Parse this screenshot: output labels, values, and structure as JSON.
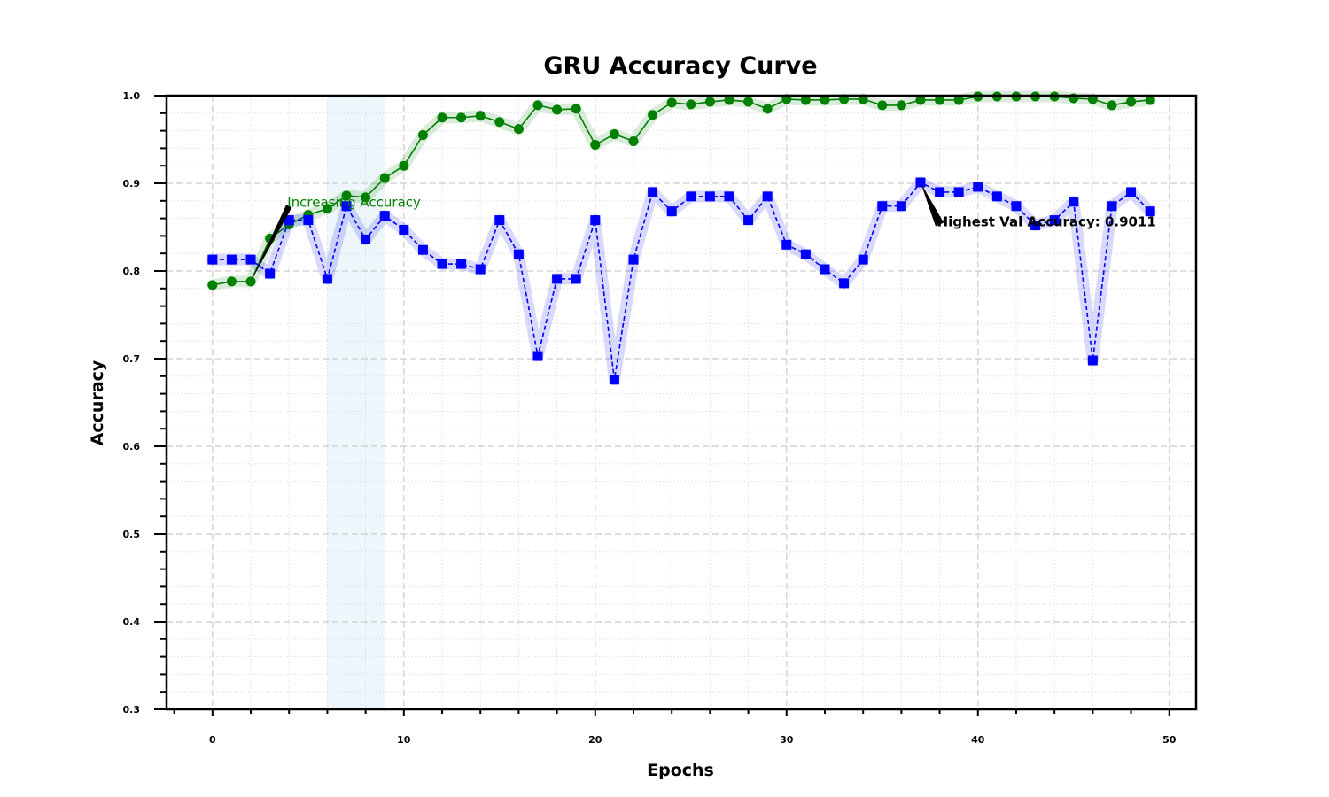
{
  "chart_data": {
    "type": "line",
    "title": "GRU Accuracy Curve",
    "xlabel": "Epochs",
    "ylabel": "Accuracy",
    "xlim": [
      -2.4,
      51.4
    ],
    "ylim": [
      0.3,
      1.0
    ],
    "x_ticks": [
      "0",
      "10",
      "20",
      "30",
      "40",
      "50"
    ],
    "y_ticks": [
      "0.3",
      "0.4",
      "0.5",
      "0.6",
      "0.7",
      "0.8",
      "0.9",
      "1.0"
    ],
    "grid": true,
    "legend": "none",
    "highlight_span": [
      6,
      9
    ],
    "colors": {
      "train": "#008000",
      "val": "#0000ff",
      "span": "#add8e6"
    },
    "series": [
      {
        "key": "train",
        "marker": "circle",
        "linestyle": "solid",
        "x": [
          0,
          1,
          2,
          3,
          4,
          5,
          6,
          7,
          8,
          9,
          10,
          11,
          12,
          13,
          14,
          15,
          16,
          17,
          18,
          19,
          20,
          21,
          22,
          23,
          24,
          25,
          26,
          27,
          28,
          29,
          30,
          31,
          32,
          33,
          34,
          35,
          36,
          37,
          38,
          39,
          40,
          41,
          42,
          43,
          44,
          45,
          46,
          47,
          48,
          49
        ],
        "values": [
          0.784,
          0.788,
          0.788,
          0.837,
          0.853,
          0.864,
          0.871,
          0.886,
          0.884,
          0.906,
          0.92,
          0.955,
          0.975,
          0.975,
          0.977,
          0.97,
          0.962,
          0.989,
          0.984,
          0.985,
          0.944,
          0.956,
          0.948,
          0.978,
          0.992,
          0.99,
          0.993,
          0.995,
          0.993,
          0.985,
          0.996,
          0.995,
          0.995,
          0.996,
          0.996,
          0.989,
          0.989,
          0.995,
          0.995,
          0.995,
          0.999,
          0.999,
          0.999,
          0.999,
          0.999,
          0.997,
          0.996,
          0.989,
          0.993,
          0.995
        ]
      },
      {
        "key": "val",
        "marker": "square",
        "linestyle": "dashed",
        "x": [
          0,
          1,
          2,
          3,
          4,
          5,
          6,
          7,
          8,
          9,
          10,
          11,
          12,
          13,
          14,
          15,
          16,
          17,
          18,
          19,
          20,
          21,
          22,
          23,
          24,
          25,
          26,
          27,
          28,
          29,
          30,
          31,
          32,
          33,
          34,
          35,
          36,
          37,
          38,
          39,
          40,
          41,
          42,
          43,
          44,
          45,
          46,
          47,
          48,
          49
        ],
        "values": [
          0.813,
          0.813,
          0.813,
          0.797,
          0.858,
          0.858,
          0.791,
          0.874,
          0.836,
          0.863,
          0.847,
          0.824,
          0.808,
          0.808,
          0.802,
          0.858,
          0.819,
          0.703,
          0.791,
          0.791,
          0.858,
          0.676,
          0.813,
          0.89,
          0.868,
          0.885,
          0.885,
          0.885,
          0.858,
          0.885,
          0.83,
          0.819,
          0.802,
          0.786,
          0.813,
          0.874,
          0.874,
          0.901,
          0.89,
          0.89,
          0.896,
          0.885,
          0.874,
          0.852,
          0.858,
          0.879,
          0.698,
          0.874,
          0.89,
          0.868
        ]
      }
    ],
    "annotations": [
      {
        "text": "Increasing Accuracy",
        "arrow_from": [
          4,
          0.874
        ],
        "arrow_to": [
          2,
          0.788
        ],
        "color": "#008000"
      },
      {
        "text": "Highest Val Accuracy: 0.9011",
        "arrow_from": [
          38,
          0.853
        ],
        "arrow_to": [
          37,
          0.901
        ],
        "color": "#000000"
      }
    ]
  }
}
